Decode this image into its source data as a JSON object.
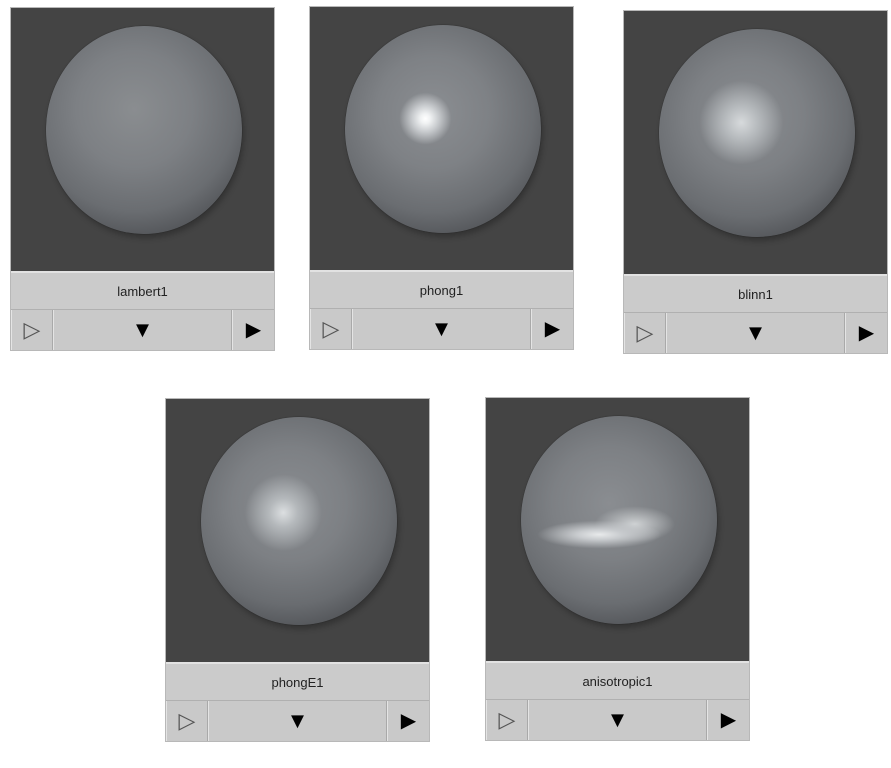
{
  "swatches": [
    {
      "name": "lambert1",
      "shader": "lambert"
    },
    {
      "name": "phong1",
      "shader": "phong"
    },
    {
      "name": "blinn1",
      "shader": "blinn"
    },
    {
      "name": "phongE1",
      "shader": "phongE"
    },
    {
      "name": "anisotropic1",
      "shader": "anisotropic"
    }
  ],
  "icons": {
    "play_outline": "▷",
    "expand_down": "▼",
    "play": "▶"
  }
}
